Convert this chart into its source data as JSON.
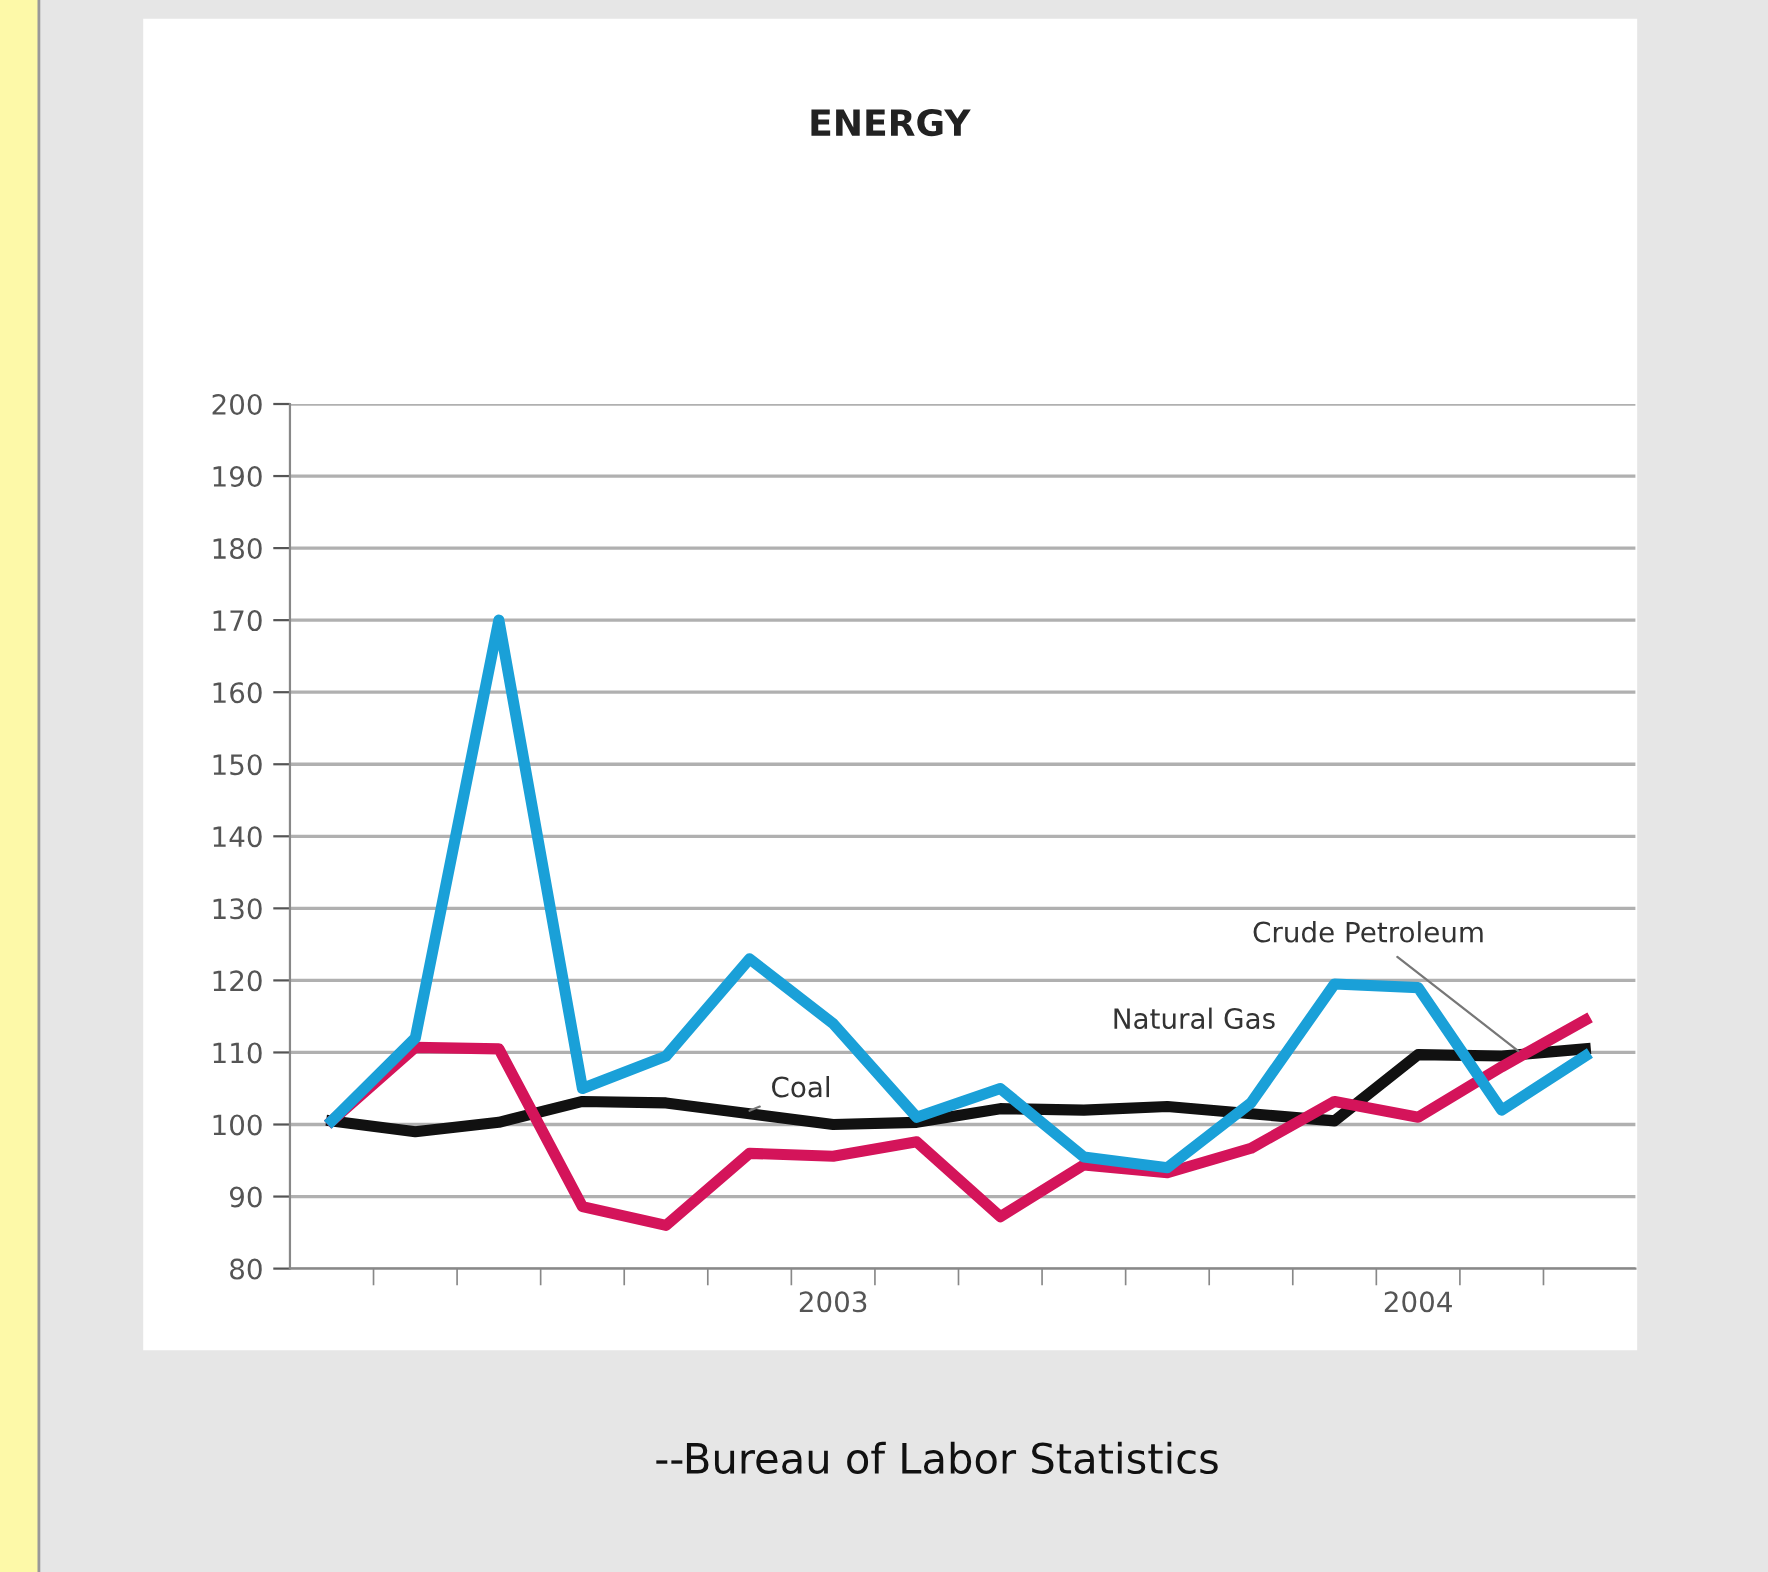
{
  "chart_data": {
    "type": "line",
    "title": "ENERGY",
    "categories": [
      null,
      null,
      null,
      null,
      null,
      null,
      "2003",
      null,
      null,
      null,
      null,
      null,
      null,
      "2004",
      null,
      null
    ],
    "ylim": [
      80,
      200
    ],
    "yticks": [
      80,
      90,
      100,
      110,
      120,
      130,
      140,
      150,
      160,
      170,
      180,
      190,
      200
    ],
    "grid": "y",
    "legend": false,
    "marker": "none",
    "line_style": "solid",
    "series": [
      {
        "name": "Natural Gas",
        "color": "#1aa0d8",
        "values": [
          100.5,
          112,
          170,
          105,
          109.5,
          123,
          114,
          101,
          105,
          95.5,
          94,
          103,
          119.5,
          119,
          102,
          109.5
        ]
      },
      {
        "name": "Crude Petroleum",
        "color": "#d4145a",
        "values": [
          100.5,
          110.7,
          110.5,
          88.6,
          86,
          96,
          95.6,
          97.6,
          87.2,
          94.4,
          93.3,
          96.7,
          103.2,
          101,
          108,
          114.5
        ]
      },
      {
        "name": "Coal",
        "color": "#111111",
        "values": [
          100.5,
          99,
          100.3,
          103.2,
          103,
          101.5,
          100,
          100.3,
          102.2,
          102,
          102.5,
          101.5,
          100.5,
          109.7,
          109.5,
          110.5
        ]
      }
    ],
    "annotations": [
      "--Bureau of Labor Statistics"
    ]
  }
}
